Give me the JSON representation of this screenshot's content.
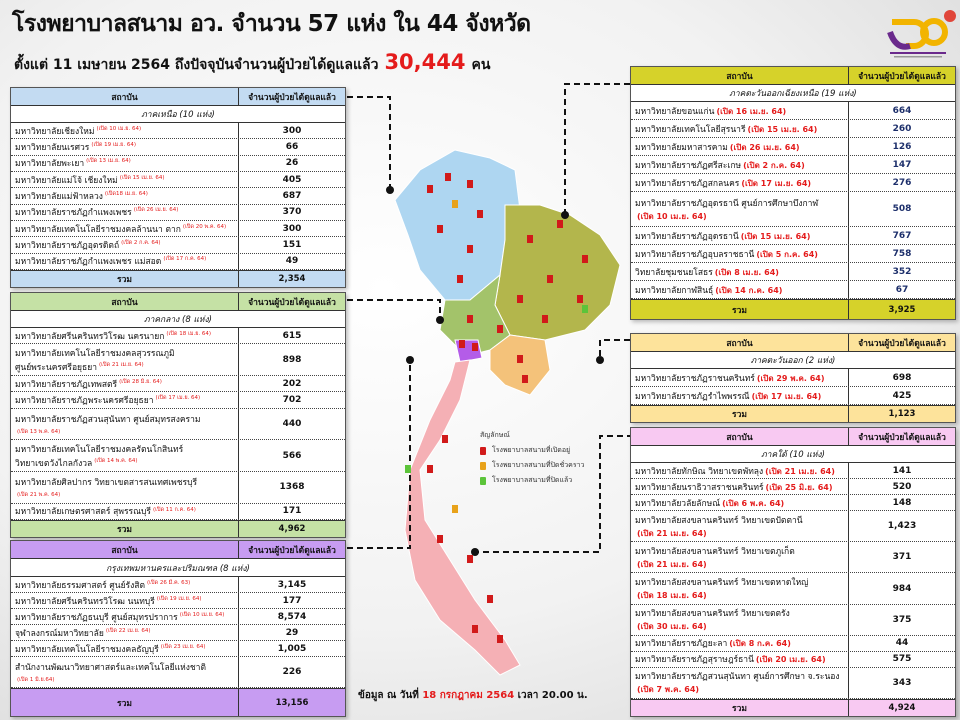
{
  "header": {
    "title": "โรงพยาบาลสนาม อว.  จำนวน 57 แห่ง ใน 44 จังหวัด",
    "subtitle_pre": "ตั้งแต่  11 เมษายน 2564 ถึงปัจจุบันจำนวนผู้ป่วยได้ดูแลแล้ว",
    "total": "30,444",
    "unit": "คน",
    "logo_text": "กระทรวงการอุดมศึกษา วิทยาศาสตร์ วิจัยและนวัตกรรม"
  },
  "colors": {
    "north": "#c3dbf2",
    "central": "#c5e1a5",
    "bangkok": "#c79cf2",
    "northeast": "#d6d22a",
    "east": "#fde39b",
    "south": "#f8c9f2",
    "note": "#e41b1b"
  },
  "col_headers": {
    "institution": "สถาบัน",
    "patients": "จำนวนผู้ป่วยได้ดูแลแล้ว",
    "total": "รวม"
  },
  "tables": {
    "north": {
      "region": "ภาคเหนือ (10 แห่ง)",
      "total": "2,354",
      "rows": [
        {
          "name": [
            "มหาวิทยาลัยเชียงใหม่"
          ],
          "note": "(เปิด 10 เม.ย. 64)",
          "value": "300"
        },
        {
          "name": [
            "มหาวิทยาลัยนเรศวร"
          ],
          "note": "(เปิด 19 เม.ย. 64)",
          "value": "66"
        },
        {
          "name": [
            "มหาวิทยาลัยพะเยา"
          ],
          "note": "(เปิด 13 เม.ย. 64)",
          "value": "26"
        },
        {
          "name": [
            "มหาวิทยาลัยแม่โจ้ เชียงใหม่"
          ],
          "note": "(เปิด 15 เม.ย. 64)",
          "value": "405"
        },
        {
          "name": [
            "มหาวิทยาลัยแม่ฟ้าหลวง"
          ],
          "note": "(เปิด18 เม.ย. 64)",
          "value": "687"
        },
        {
          "name": [
            "มหาวิทยาลัยราชภัฏกำแพงเพชร"
          ],
          "note": "(เปิด 26 เม.ย. 64)",
          "value": "370"
        },
        {
          "name": [
            "มหาวิทยาลัยเทคโนโลยีราชมงคลล้านนา  ตาก"
          ],
          "note": "(เปิด 20 พ.ค. 64)",
          "value": "300"
        },
        {
          "name": [
            "มหาวิทยาลัยราชภัฏอุตรดิตถ์"
          ],
          "note": "(เปิด 2 ก.ค. 64)",
          "value": "151"
        },
        {
          "name": [
            "มหาวิทยาลัยราชภัฏกำแพงเพชร แม่สอด"
          ],
          "note": "(เปิด 17 ก.ค. 64)",
          "value": "49"
        }
      ]
    },
    "central": {
      "region": "ภาคกลาง (8 แห่ง)",
      "total": "4,962",
      "rows": [
        {
          "name": [
            "มหาวิทยาลัยศรีนครินทรวิโรฒ นครนายก"
          ],
          "note": "(เปิด 18 เม.ย. 64)",
          "value": "615"
        },
        {
          "name": [
            "มหาวิทยาลัยเทคโนโลยีราชมงคลสุวรรณภูมิ",
            "ศูนย์พระนครศรีอยุธยา"
          ],
          "note": "(เปิด 21 เม.ย. 64)",
          "value": "898"
        },
        {
          "name": [
            "มหาวิทยาลัยราชภัฏเทพสตรี"
          ],
          "note": "(เปิด 28 มิ.ย. 64)",
          "value": "202"
        },
        {
          "name": [
            "มหาวิทยาลัยราชภัฏพระนครศรีอยุธยา"
          ],
          "note": "(เปิด 17 เม.ย. 64)",
          "value": "702"
        },
        {
          "name": [
            "มหาวิทยาลัยราชภัฏสวนสุนันทา ศูนย์สมุทรสงคราม"
          ],
          "note": "(เปิด 13 พ.ค. 64)",
          "note_below": true,
          "value": "440"
        },
        {
          "name": [
            "มหาวิทยาลัยเทคโนโลยีราชมงคลรัตนโกสินทร์",
            "วิทยาเขตวังไกลกังวล"
          ],
          "note": "(เปิด 14 พ.ค. 64)",
          "value": "566"
        },
        {
          "name": [
            "มหาวิทยาลัยศิลปากร วิทยาเขตสารสนเทศเพชรบุรี"
          ],
          "note": "(เปิด 21 พ.ค. 64)",
          "note_below": true,
          "value": "1368"
        },
        {
          "name": [
            "มหาวิทยาลัยเกษตรศาสตร์ สุพรรณบุรี"
          ],
          "note": "(เปิด 11 ก.ค. 64)",
          "value": "171"
        }
      ]
    },
    "bangkok": {
      "region": "กรุงเทพมหานครและปริมณฑล (8 แห่ง)",
      "total": "13,156",
      "rows": [
        {
          "name": [
            "มหาวิทยาลัยธรรมศาสตร์ ศูนย์รังสิต"
          ],
          "note": "(เปิด 26 มี.ค. 63)",
          "value": "3,145"
        },
        {
          "name": [
            "มหาวิทยาลัยศรีนครินทรวิโรฒ นนทบุรี"
          ],
          "note": "(เปิด 19 เม.ย. 64)",
          "value": "177"
        },
        {
          "name": [
            "มหาวิทยาลัยราชภัฏธนบุรี  ศูนย์สมุทรปราการ"
          ],
          "note": "(เปิด 10 เม.ย. 64)",
          "value": "8,574"
        },
        {
          "name": [
            "จุฬาลงกรณ์มหาวิทยาลัย"
          ],
          "note": "(เปิด 22 เม.ย. 64)",
          "value": "29"
        },
        {
          "name": [
            "มหาวิทยาลัยเทคโนโลยีราชมงคลธัญบุรี"
          ],
          "note": "(เปิด 23 เม.ย. 64)",
          "value": "1,005"
        },
        {
          "name": [
            "สำนักงานพัฒนาวิทยาศาสตร์และเทคโนโลยีแห่งชาติ"
          ],
          "note": "(เปิด 1 มิ.ย.64)",
          "note_below": true,
          "value": "226"
        }
      ]
    },
    "northeast": {
      "region": "ภาคตะวันออกเฉียงเหนือ  (19 แห่ง)",
      "total": "3,925",
      "rows": [
        {
          "name": [
            "มหาวิทยาลัยขอนแก่น"
          ],
          "note": "(เปิด 16 เม.ย. 64)",
          "value": "664"
        },
        {
          "name": [
            "มหาวิทยาลัยเทคโนโลยีสุรนารี"
          ],
          "note": "(เปิด 15 เม.ย. 64)",
          "value": "260"
        },
        {
          "name": [
            "มหาวิทยาลัยมหาสารคาม"
          ],
          "note": "(เปิด 26 เม.ย. 64)",
          "value": "126"
        },
        {
          "name": [
            "มหาวิทยาลัยราชภัฏศรีสะเกษ"
          ],
          "note": "(เปิด 2 ก.ค. 64)",
          "value": "147"
        },
        {
          "name": [
            "มหาวิทยาลัยราชภัฏสกลนคร"
          ],
          "note": "(เปิด 17 เม.ย. 64)",
          "value": "276"
        },
        {
          "name": [
            "มหาวิทยาลัยราชภัฏอุดรธานี ศูนย์การศึกษาบึงกาฬ"
          ],
          "note": "(เปิด 10 เม.ย. 64)",
          "note_below": true,
          "value": "508"
        },
        {
          "name": [
            "มหาวิทยาลัยราชภัฏอุดรธานี"
          ],
          "note": "(เปิด 15 เม.ย. 64)",
          "value": "767"
        },
        {
          "name": [
            "มหาวิทยาลัยราชภัฏอุบลราชธานี"
          ],
          "note": "(เปิด 5 ก.ค. 64)",
          "value": "758"
        },
        {
          "name": [
            "วิทยาลัยชุมชนยโสธร"
          ],
          "note": "(เปิด 8 เม.ย. 64)",
          "value": "352"
        },
        {
          "name": [
            "มหาวิทยาลัยกาฬสินธุ์"
          ],
          "note": "(เปิด 14 ก.ค. 64)",
          "value": "67"
        }
      ]
    },
    "east": {
      "region": "ภาคตะวันออก (2 แห่ง)",
      "total": "1,123",
      "rows": [
        {
          "name": [
            "มหาวิทยาลัยราชภัฏราชนครินทร์"
          ],
          "note": "(เปิด 29 พ.ค. 64)",
          "value": "698"
        },
        {
          "name": [
            "มหาวิทยาลัยราชภัฏรำไพพรรณี"
          ],
          "note": "(เปิด 17 เม.ย. 64)",
          "value": "425"
        }
      ]
    },
    "south": {
      "region": "ภาคใต้  (10 แห่ง)",
      "total": "4,924",
      "rows": [
        {
          "name": [
            "มหาวิทยาลัยทักษิณ วิทยาเขตพัทลุง"
          ],
          "note": "(เปิด 21 เม.ย. 64)",
          "value": "141"
        },
        {
          "name": [
            "มหาวิทยาลัยนราธิวาสราชนครินทร์"
          ],
          "note": "(เปิด 25 มิ.ย. 64)",
          "value": "520"
        },
        {
          "name": [
            "มหาวิทยาลัยวลัยลักษณ์"
          ],
          "note": "(เปิด 6 พ.ค. 64)",
          "value": "148"
        },
        {
          "name": [
            "มหาวิทยาลัยสงขลานครินทร์ วิทยาเขตปัตตานี"
          ],
          "note": "(เปิด 21 เม.ย. 64)",
          "note_below": true,
          "value": "1,423"
        },
        {
          "name": [
            "มหาวิทยาลัยสงขลานครินทร์ วิทยาเขตภูเก็ต"
          ],
          "note": "(เปิด 21 เม.ย. 64)",
          "note_below": true,
          "value": "371"
        },
        {
          "name": [
            "มหาวิทยาลัยสงขลานครินทร์  วิทยาเขตหาดใหญ่"
          ],
          "note": "(เปิด 18 เม.ย. 64)",
          "note_below": true,
          "value": "984"
        },
        {
          "name": [
            "มหาวิทยาลัยสงขลานครินทร์ วิทยาเขตตรัง"
          ],
          "note": "(เปิด  30 เม.ย. 64)",
          "note_below": true,
          "value": "375"
        },
        {
          "name": [
            "มหาวิทยาลัยราชภัฏยะลา"
          ],
          "note": "(เปิด  8 ก.ค. 64)",
          "value": "44"
        },
        {
          "name": [
            "มหาวิทยาลัยราชภัฏสุราษฎร์ธานี"
          ],
          "note": "(เปิด 20 เม.ย. 64)",
          "value": "575"
        },
        {
          "name": [
            "มหาวิทยาลัยราชภัฏสวนสุนันทา ศูนย์การศึกษา จ.ระนอง"
          ],
          "note": "(เปิด 7 พ.ค. 64)",
          "note_below": true,
          "value": "343"
        }
      ]
    }
  },
  "legend": {
    "title": "สัญลักษณ์",
    "items": [
      {
        "label": "โรงพยาบาลสนามที่เปิดอยู่",
        "color": "#d11a1a"
      },
      {
        "label": "โรงพยาบาลสนามที่ปิดชั่วคราว",
        "color": "#e8a21a"
      },
      {
        "label": "โรงพยาบาลสนามที่ปิดแล้ว",
        "color": "#5cc43a"
      }
    ]
  },
  "footer": {
    "pre": "ข้อมูล ณ วันที่",
    "date": "18 กรกฎาคม 2564",
    "post": "เวลา 20.00 น."
  }
}
